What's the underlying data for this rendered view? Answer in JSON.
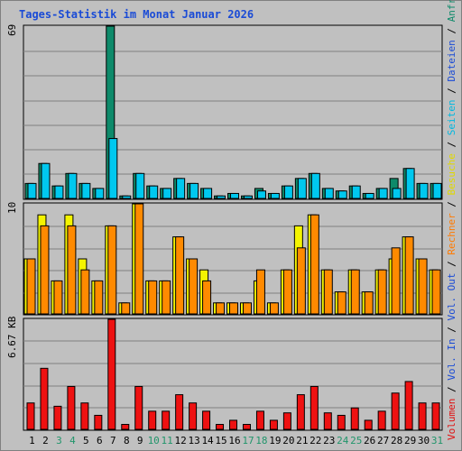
{
  "title": "Tages-Statistik im Monat Januar 2026",
  "colors": {
    "background": "#c0c0c0",
    "plot_bg": "#c0c0c0",
    "grid": "#808080",
    "anfragen": "#0e8a6a",
    "dateien": "#00c8ef",
    "seiten": "#00d8e8",
    "besuche": "#f4f400",
    "rechner": "#ff8a00",
    "volumen": "#ee1111",
    "weekday_label": "#000000",
    "weekend_label": "#21956b",
    "title": "#1a4bd6"
  },
  "legend_right": [
    {
      "text": "Volumen",
      "color": "#e01010"
    },
    {
      "text": " / ",
      "color": "#000000"
    },
    {
      "text": "Vol. In",
      "color": "#1a4bd6"
    },
    {
      "text": " / ",
      "color": "#000000"
    },
    {
      "text": "Vol. Out",
      "color": "#1a4bd6"
    },
    {
      "text": " / ",
      "color": "#000000"
    },
    {
      "text": "Rechner",
      "color": "#ff7a00"
    },
    {
      "text": " / ",
      "color": "#000000"
    },
    {
      "text": "Besuche",
      "color": "#e0d800"
    },
    {
      "text": " / ",
      "color": "#000000"
    },
    {
      "text": "Seiten",
      "color": "#00b8e0"
    },
    {
      "text": " / ",
      "color": "#000000"
    },
    {
      "text": "Dateien",
      "color": "#1a4bd6"
    },
    {
      "text": " / ",
      "color": "#000000"
    },
    {
      "text": "Anfragen",
      "color": "#0e8a6a"
    }
  ],
  "chart_data": [
    {
      "type": "bar",
      "title": "Tages-Statistik im Monat Januar 2026",
      "ylabel_max": "69",
      "ylim": [
        0,
        69
      ],
      "categories": [
        "1",
        "2",
        "3",
        "4",
        "5",
        "6",
        "7",
        "8",
        "9",
        "10",
        "11",
        "12",
        "13",
        "14",
        "15",
        "16",
        "17",
        "18",
        "19",
        "20",
        "21",
        "22",
        "23",
        "24",
        "25",
        "26",
        "27",
        "28",
        "29",
        "30",
        "31"
      ],
      "weekend_days": [
        "3",
        "4",
        "10",
        "11",
        "17",
        "18",
        "24",
        "25",
        "31"
      ],
      "series": [
        {
          "name": "Anfragen",
          "values": [
            6,
            14,
            5,
            10,
            6,
            4,
            69,
            1,
            10,
            5,
            4,
            8,
            6,
            4,
            1,
            2,
            1,
            4,
            2,
            5,
            8,
            10,
            4,
            3,
            5,
            2,
            4,
            8,
            12,
            6,
            6
          ]
        },
        {
          "name": "Dateien",
          "values": [
            6,
            14,
            5,
            10,
            6,
            4,
            24,
            1,
            10,
            5,
            4,
            8,
            6,
            4,
            1,
            2,
            1,
            3,
            2,
            5,
            8,
            10,
            4,
            3,
            5,
            2,
            4,
            4,
            12,
            6,
            6
          ]
        }
      ]
    },
    {
      "type": "bar",
      "ylabel_max": "10",
      "ylim": [
        0,
        10
      ],
      "categories": [
        "1",
        "2",
        "3",
        "4",
        "5",
        "6",
        "7",
        "8",
        "9",
        "10",
        "11",
        "12",
        "13",
        "14",
        "15",
        "16",
        "17",
        "18",
        "19",
        "20",
        "21",
        "22",
        "23",
        "24",
        "25",
        "26",
        "27",
        "28",
        "29",
        "30",
        "31"
      ],
      "series": [
        {
          "name": "Besuche",
          "values": [
            5,
            9,
            3,
            9,
            5,
            3,
            8,
            1,
            10,
            3,
            3,
            7,
            5,
            4,
            1,
            1,
            1,
            3,
            1,
            4,
            8,
            9,
            4,
            2,
            4,
            2,
            4,
            5,
            7,
            5,
            4
          ]
        },
        {
          "name": "Rechner",
          "values": [
            5,
            8,
            3,
            8,
            4,
            3,
            8,
            1,
            10,
            3,
            3,
            7,
            5,
            3,
            1,
            1,
            1,
            4,
            1,
            4,
            6,
            9,
            4,
            2,
            4,
            2,
            4,
            6,
            7,
            5,
            4
          ]
        }
      ]
    },
    {
      "type": "bar",
      "ylabel_max": "6.67 KB",
      "ylim": [
        0,
        6.67
      ],
      "categories": [
        "1",
        "2",
        "3",
        "4",
        "5",
        "6",
        "7",
        "8",
        "9",
        "10",
        "11",
        "12",
        "13",
        "14",
        "15",
        "16",
        "17",
        "18",
        "19",
        "20",
        "21",
        "22",
        "23",
        "24",
        "25",
        "26",
        "27",
        "28",
        "29",
        "30",
        "31"
      ],
      "series": [
        {
          "name": "Volumen",
          "values": [
            1.6,
            3.7,
            1.4,
            2.6,
            1.6,
            0.85,
            6.67,
            0.3,
            2.6,
            1.1,
            1.1,
            2.1,
            1.6,
            1.1,
            0.3,
            0.55,
            0.3,
            1.1,
            0.55,
            1.0,
            2.1,
            2.6,
            1.0,
            0.85,
            1.3,
            0.55,
            1.1,
            2.2,
            2.9,
            1.6,
            1.6
          ]
        }
      ]
    }
  ]
}
